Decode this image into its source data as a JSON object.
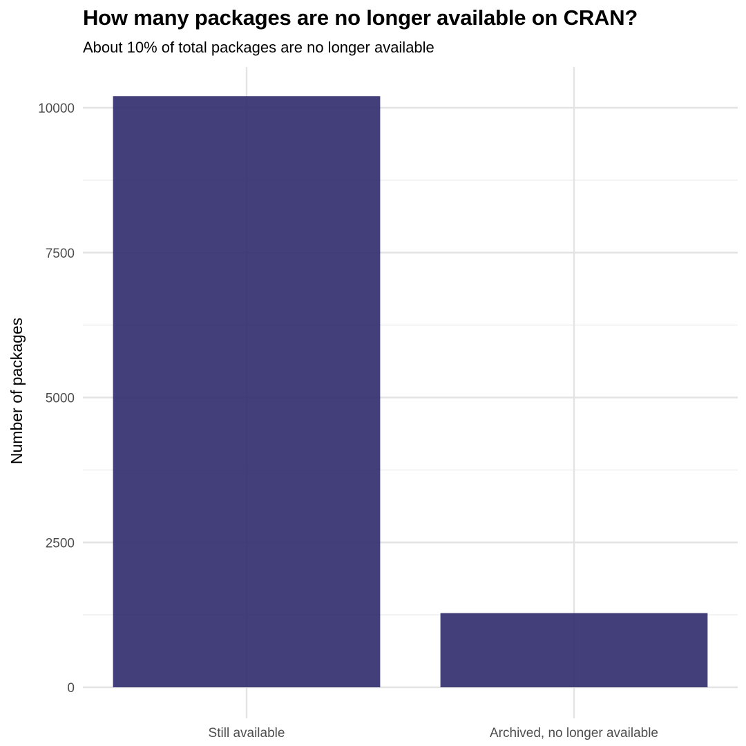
{
  "chart_data": {
    "type": "bar",
    "title": "How many packages are no longer available on CRAN?",
    "subtitle": "About 10% of total packages are no longer available",
    "xlabel": "",
    "ylabel": "Number of packages",
    "categories": [
      "Still available",
      "Archived, no longer available"
    ],
    "values": [
      10200,
      1280
    ],
    "ylim": [
      0,
      10700
    ],
    "yticks": [
      0,
      2500,
      5000,
      7500,
      10000
    ],
    "grid": true,
    "bar_color": "#2e2a6c",
    "bar_opacity": 0.9,
    "legend": "none"
  }
}
